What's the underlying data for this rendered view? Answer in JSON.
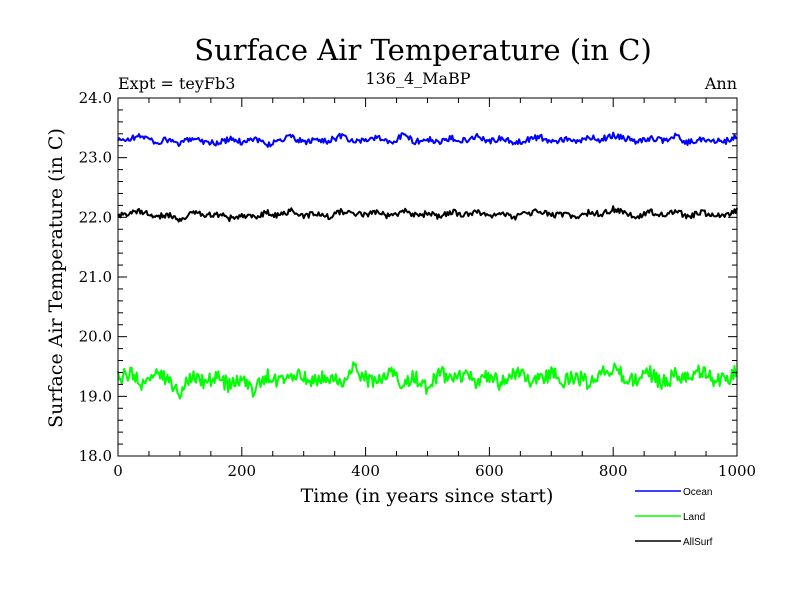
{
  "chart_data": {
    "type": "line",
    "title": "Surface Air Temperature (in C)",
    "subtitle_left": "Expt = teyFb3",
    "subtitle_center": "136_4_MaBP",
    "subtitle_right": "Ann",
    "xlabel": "Time (in years since start)",
    "ylabel": "Surface Air Temperature (in C)",
    "xlim": [
      0,
      1000
    ],
    "ylim": [
      18.0,
      24.0
    ],
    "x_ticks": [
      0,
      200,
      400,
      600,
      800,
      1000
    ],
    "x_tick_labels": [
      "0",
      "200",
      "400",
      "600",
      "800",
      "1000"
    ],
    "y_ticks": [
      18.0,
      19.0,
      20.0,
      21.0,
      22.0,
      23.0,
      24.0
    ],
    "y_tick_labels": [
      "18.0",
      "19.0",
      "20.0",
      "21.0",
      "22.0",
      "23.0",
      "24.0"
    ],
    "grid": false,
    "legend_position": "bottom-right",
    "series": [
      {
        "name": "Ocean",
        "color": "#0000ff",
        "x": [
          0,
          20,
          40,
          60,
          80,
          100,
          120,
          140,
          160,
          180,
          200,
          220,
          240,
          260,
          280,
          300,
          320,
          340,
          360,
          380,
          400,
          420,
          440,
          460,
          480,
          500,
          520,
          540,
          560,
          580,
          600,
          620,
          640,
          660,
          680,
          700,
          720,
          740,
          760,
          780,
          800,
          820,
          840,
          860,
          880,
          900,
          920,
          940,
          960,
          980,
          1000
        ],
        "values": [
          23.28,
          23.32,
          23.37,
          23.25,
          23.3,
          23.22,
          23.34,
          23.27,
          23.24,
          23.31,
          23.26,
          23.33,
          23.21,
          23.29,
          23.35,
          23.25,
          23.3,
          23.28,
          23.36,
          23.26,
          23.3,
          23.34,
          23.24,
          23.38,
          23.27,
          23.31,
          23.25,
          23.33,
          23.29,
          23.36,
          23.28,
          23.32,
          23.24,
          23.3,
          23.35,
          23.27,
          23.31,
          23.26,
          23.34,
          23.3,
          23.38,
          23.32,
          23.26,
          23.33,
          23.29,
          23.36,
          23.25,
          23.31,
          23.28,
          23.27,
          23.36
        ]
      },
      {
        "name": "Land",
        "color": "#00ff00",
        "x": [
          0,
          20,
          40,
          60,
          80,
          100,
          120,
          140,
          160,
          180,
          200,
          220,
          240,
          260,
          280,
          300,
          320,
          340,
          360,
          380,
          400,
          420,
          440,
          460,
          480,
          500,
          520,
          540,
          560,
          580,
          600,
          620,
          640,
          660,
          680,
          700,
          720,
          740,
          760,
          780,
          800,
          820,
          840,
          860,
          880,
          900,
          920,
          940,
          960,
          980,
          1000
        ],
        "values": [
          19.3,
          19.38,
          19.2,
          19.35,
          19.28,
          19.05,
          19.4,
          19.25,
          19.32,
          19.18,
          19.3,
          19.08,
          19.35,
          19.22,
          19.4,
          19.28,
          19.3,
          19.36,
          19.2,
          19.45,
          19.3,
          19.25,
          19.38,
          19.22,
          19.34,
          19.1,
          19.4,
          19.28,
          19.33,
          19.24,
          19.35,
          19.2,
          19.42,
          19.28,
          19.3,
          19.38,
          19.25,
          19.34,
          19.22,
          19.4,
          19.48,
          19.3,
          19.26,
          19.38,
          19.22,
          19.35,
          19.28,
          19.4,
          19.3,
          19.25,
          19.45
        ]
      },
      {
        "name": "AllSurf",
        "color": "#000000",
        "x": [
          0,
          20,
          40,
          60,
          80,
          100,
          120,
          140,
          160,
          180,
          200,
          220,
          240,
          260,
          280,
          300,
          320,
          340,
          360,
          380,
          400,
          420,
          440,
          460,
          480,
          500,
          520,
          540,
          560,
          580,
          600,
          620,
          640,
          660,
          680,
          700,
          720,
          740,
          760,
          780,
          800,
          820,
          840,
          860,
          880,
          900,
          920,
          940,
          960,
          980,
          1000
        ],
        "values": [
          22.02,
          22.08,
          22.1,
          22.0,
          22.05,
          21.95,
          22.1,
          22.02,
          22.06,
          21.98,
          22.04,
          22.0,
          22.08,
          22.02,
          22.12,
          22.03,
          22.06,
          22.01,
          22.09,
          22.04,
          22.05,
          22.1,
          22.0,
          22.12,
          22.03,
          22.06,
          22.01,
          22.09,
          22.04,
          22.08,
          22.02,
          22.06,
          22.0,
          22.07,
          22.1,
          22.03,
          22.05,
          22.01,
          22.08,
          22.05,
          22.14,
          22.06,
          22.02,
          22.09,
          22.04,
          22.12,
          22.0,
          22.08,
          22.05,
          22.03,
          22.12
        ]
      }
    ]
  }
}
